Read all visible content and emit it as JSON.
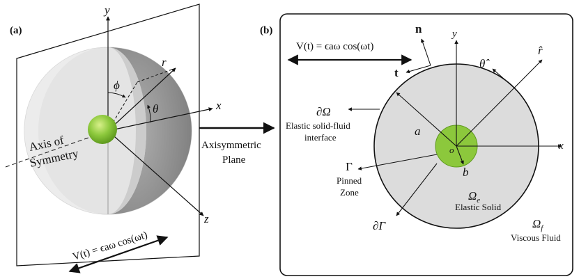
{
  "colors": {
    "sphere_light": "#e4e4e4",
    "sphere_dark": "#8f8f8f",
    "solid_fill": "#dcdcdc",
    "core_green": "#8cc83c",
    "core_green_dark": "#5f9a1e",
    "line": "#111111"
  },
  "panel_a": {
    "label": "(a)",
    "axis_y": "y",
    "axis_x": "x",
    "axis_z": "z",
    "axis_r": "r",
    "angle_phi": "ϕ",
    "angle_theta": "θ",
    "symmetry_line1": "Axis of",
    "symmetry_line2": "Symmetry",
    "velocity_formula": "V(t) = ϵaω cos(ωt)"
  },
  "transfer": {
    "line1": "Axisymmetric",
    "line2": "Plane"
  },
  "panel_b": {
    "label": "(b)",
    "velocity_formula": "V(t) = ϵaω cos(ωt)",
    "normal": "n",
    "tangent": "t",
    "axis_y": "y",
    "axis_x": "x",
    "theta_hat": "θ̂",
    "r_hat": "r̂",
    "boundary_symbol": "∂Ω",
    "boundary_line1": "Elastic solid-fluid",
    "boundary_line2": "interface",
    "radius_outer": "a",
    "radius_inner": "b",
    "origin": "o",
    "gamma": "Γ",
    "pinned_line1": "Pinned",
    "pinned_line2": "Zone",
    "dgamma": "∂Γ",
    "omega_e": "Ω",
    "omega_e_sub": "e",
    "elastic_solid": "Elastic Solid",
    "omega_f": "Ω",
    "omega_f_sub": "f",
    "viscous_fluid": "Viscous Fluid"
  }
}
